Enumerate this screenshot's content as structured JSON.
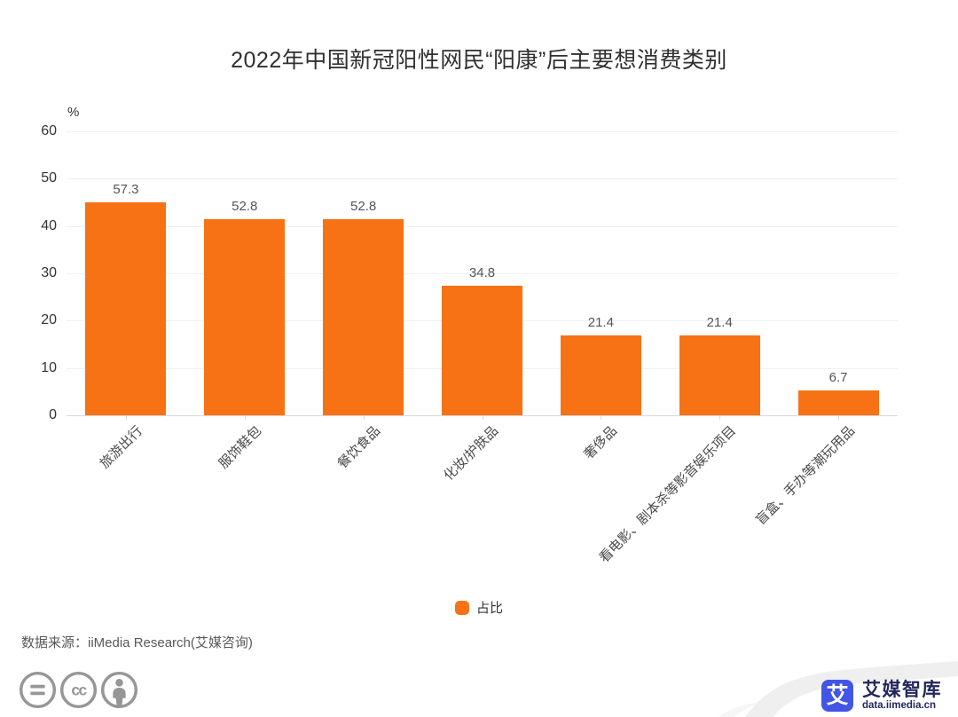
{
  "title": {
    "text": "2022年中国新冠阳性网民“阳康”后主要想消费类别"
  },
  "chart_data": {
    "type": "bar",
    "title": "2022年中国新冠阳性网民“阳康”后主要想消费类别",
    "unit_label": "%",
    "categories": [
      "旅游出行",
      "服饰鞋包",
      "餐饮食品",
      "化妆/护肤品",
      "奢侈品",
      "看电影、剧本杀等影音娱乐项目",
      "盲盒、手办等潮玩用品"
    ],
    "series": [
      {
        "name": "占比",
        "color": "#f77214",
        "values": [
          57.3,
          52.8,
          52.8,
          34.8,
          21.4,
          21.4,
          6.7
        ]
      }
    ],
    "ylim": [
      0,
      60
    ],
    "yticks": [
      0,
      10,
      20,
      30,
      40,
      50,
      60
    ],
    "grid": true,
    "legend_position": "bottom"
  },
  "legend": {
    "label": "占比",
    "color": "#f77214"
  },
  "source": {
    "text": "数据来源：iiMedia Research(艾媒咨询)"
  },
  "license": {
    "icons": [
      "equals-icon",
      "creative-commons-icon",
      "attribution-icon"
    ]
  },
  "branding": {
    "logo_glyph": "艾",
    "name": "艾媒智库",
    "site": "data.iimedia.cn",
    "logo_color": "#4355e6",
    "text_color": "#23275d"
  }
}
